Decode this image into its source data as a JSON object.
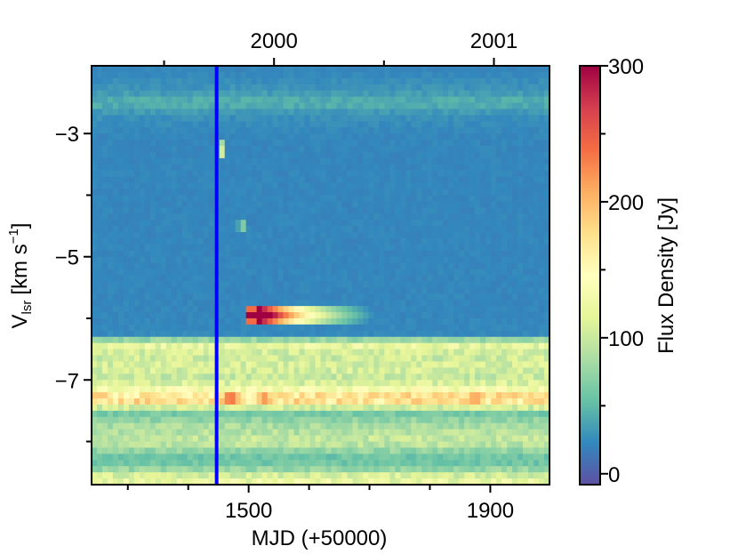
{
  "chart_data": {
    "type": "heatmap",
    "title": "",
    "xlabel": "MJD (+50000)",
    "ylabel_main": "V",
    "ylabel_sub": "lsr",
    "ylabel_unit": "[km s",
    "ylabel_unit_exp": "−1",
    "ylabel_unit_end": "]",
    "x_range": [
      1240,
      1998
    ],
    "y_range": [
      -1.9,
      -8.7
    ],
    "x_ticks_major": [
      1500,
      1900
    ],
    "x_ticks_minor": [
      1300,
      1400,
      1600,
      1700,
      1800
    ],
    "x_tick_labels": [
      "1500",
      "1900"
    ],
    "top_axis_ticks_major": [
      1542,
      1906
    ],
    "top_axis_ticks_minor": [
      1360,
      1724
    ],
    "top_axis_labels": [
      "2000",
      "2001"
    ],
    "y_ticks_major": [
      -3,
      -5,
      -7
    ],
    "y_ticks_minor": [
      -4,
      -6,
      -8
    ],
    "y_tick_labels": [
      "−3",
      "−5",
      "−7"
    ],
    "marker_line": {
      "x": 1447,
      "color": "#0000ff"
    },
    "colorbar": {
      "label": "Flux Density [Jy]",
      "range": [
        -8,
        300
      ],
      "ticks": [
        0,
        100,
        200,
        300
      ],
      "tick_labels": [
        "0",
        "100",
        "200",
        "300"
      ],
      "minor_ticks": [
        50,
        150,
        250
      ],
      "colormap": "Spectral_r"
    },
    "grid": false,
    "velocity_channel_step": 0.1,
    "base_profile": [
      {
        "v": -2.0,
        "flux": 22
      },
      {
        "v": -2.3,
        "flux": 30
      },
      {
        "v": -2.5,
        "flux": 45
      },
      {
        "v": -2.7,
        "flux": 28
      },
      {
        "v": -3.0,
        "flux": 22
      },
      {
        "v": -4.0,
        "flux": 22
      },
      {
        "v": -5.0,
        "flux": 22
      },
      {
        "v": -6.0,
        "flux": 22
      },
      {
        "v": -6.3,
        "flux": 24
      },
      {
        "v": -6.4,
        "flux": 125
      },
      {
        "v": -6.6,
        "flux": 100
      },
      {
        "v": -6.8,
        "flux": 110
      },
      {
        "v": -7.0,
        "flux": 95
      },
      {
        "v": -7.2,
        "flux": 150
      },
      {
        "v": -7.3,
        "flux": 190
      },
      {
        "v": -7.4,
        "flux": 155
      },
      {
        "v": -7.5,
        "flux": 55
      },
      {
        "v": -7.7,
        "flux": 80
      },
      {
        "v": -8.0,
        "flux": 100
      },
      {
        "v": -8.2,
        "flux": 65
      },
      {
        "v": -8.3,
        "flux": 50
      },
      {
        "v": -8.5,
        "flux": 85
      },
      {
        "v": -8.6,
        "flux": 130
      },
      {
        "v": -8.7,
        "flux": 110
      }
    ],
    "features": [
      {
        "name": "flare -6.0",
        "v_center": -5.95,
        "v_width": 0.15,
        "mjd_start": 1500,
        "mjd_peak": 1510,
        "mjd_end": 1720,
        "peak_flux": 300,
        "decay_flux": 130
      },
      {
        "name": "-7.3 hot spot A",
        "v_center": -7.3,
        "v_width": 0.12,
        "mjd_center": 1470,
        "mjd_width": 25,
        "peak_flux": 270
      },
      {
        "name": "-7.3 hot spot B",
        "v_center": -7.3,
        "v_width": 0.12,
        "mjd_center": 1525,
        "mjd_width": 20,
        "peak_flux": 250
      },
      {
        "name": "-7.3 hot spot C",
        "v_center": -7.3,
        "v_width": 0.12,
        "mjd_center": 1875,
        "mjd_width": 30,
        "peak_flux": 240
      },
      {
        "name": "-7.3 hot spot D",
        "v_center": -7.3,
        "v_width": 0.12,
        "mjd_center": 1735,
        "mjd_width": 30,
        "peak_flux": 200
      },
      {
        "name": "-7.3 hot spot E",
        "v_center": -7.3,
        "v_width": 0.12,
        "mjd_center": 1660,
        "mjd_width": 25,
        "peak_flux": 200
      },
      {
        "name": "-7.3 hot spot F",
        "v_center": -7.3,
        "v_width": 0.12,
        "mjd_center": 1340,
        "mjd_width": 60,
        "peak_flux": 200
      },
      {
        "name": "-7.3 hot spot G",
        "v_center": -7.3,
        "v_width": 0.12,
        "mjd_center": 1960,
        "mjd_width": 25,
        "peak_flux": 195
      },
      {
        "name": "-3.3 spot",
        "v_center": -3.3,
        "v_width": 0.15,
        "mjd_center": 1455,
        "mjd_width": 6,
        "peak_flux": 120
      },
      {
        "name": "-4.5 spot",
        "v_center": -4.5,
        "v_width": 0.15,
        "mjd_center": 1488,
        "mjd_width": 6,
        "peak_flux": 95
      }
    ]
  }
}
